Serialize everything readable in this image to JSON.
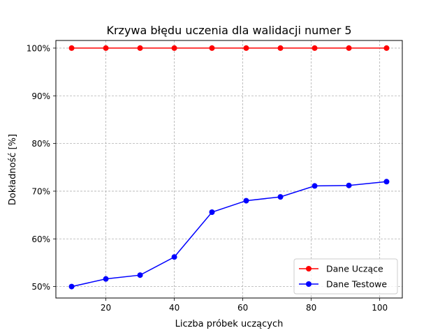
{
  "chart_data": {
    "type": "line",
    "title": "Krzywa błędu uczenia dla walidacji numer 5",
    "xlabel": "Liczba próbek uczących",
    "ylabel": "Dokładność [%]",
    "xlim": [
      5.4,
      106.6
    ],
    "ylim": [
      47.6,
      101.6
    ],
    "xticks": [
      20,
      40,
      60,
      80,
      100
    ],
    "yticks": [
      50,
      60,
      70,
      80,
      90,
      100
    ],
    "ytick_labels": [
      "50%",
      "60%",
      "70%",
      "80%",
      "90%",
      "100%"
    ],
    "grid": true,
    "legend_position": "lower-right",
    "x": [
      10,
      20,
      30,
      40,
      51,
      61,
      71,
      81,
      91,
      102
    ],
    "series": [
      {
        "name": "Dane Uczące",
        "color": "#ff0000",
        "values": [
          100,
          100,
          100,
          100,
          100,
          100,
          100,
          100,
          100,
          100
        ]
      },
      {
        "name": "Dane Testowe",
        "color": "#0000ff",
        "values": [
          50.0,
          51.6,
          52.4,
          56.2,
          65.6,
          68.0,
          68.8,
          71.1,
          71.2,
          72.0
        ]
      }
    ]
  }
}
